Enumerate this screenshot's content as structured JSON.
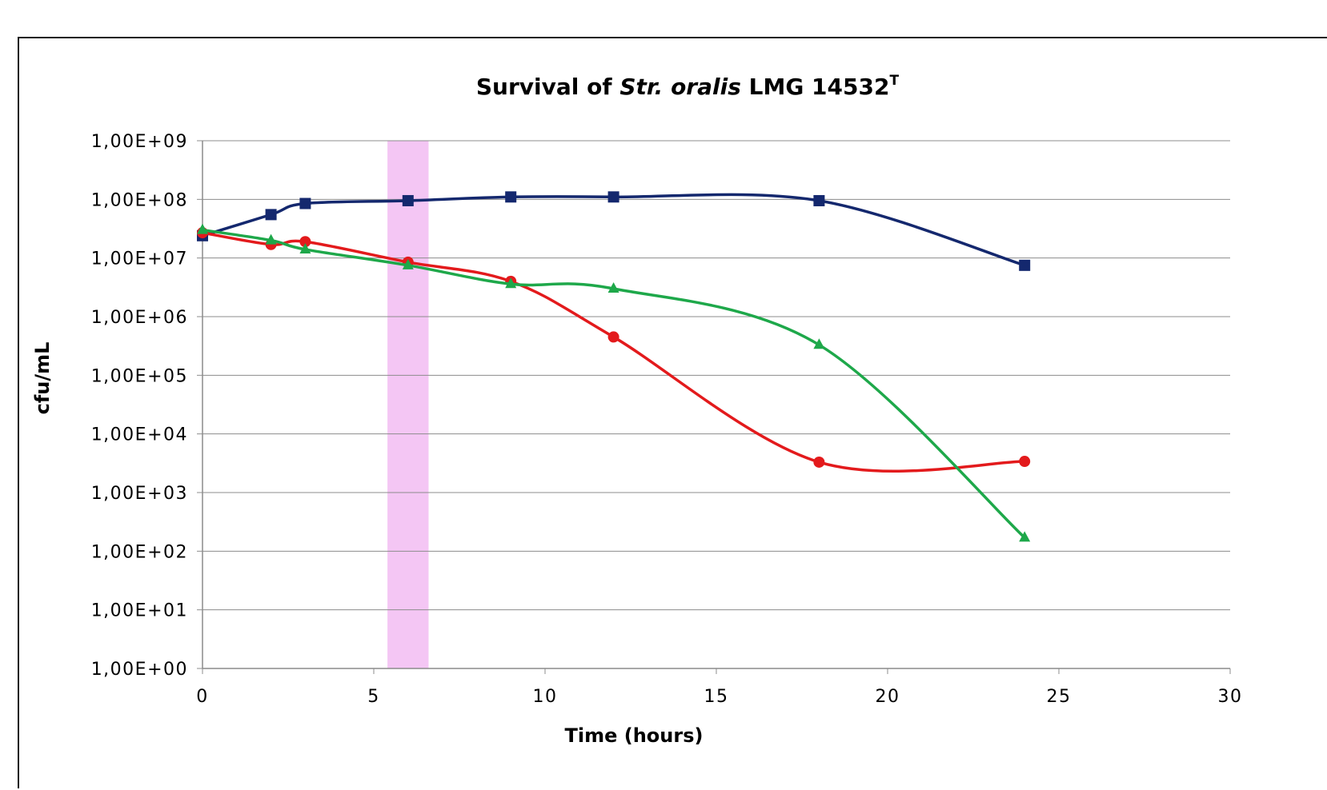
{
  "chart_data": {
    "type": "line",
    "title": {
      "prefix": "Survival of ",
      "italic": "Str. oralis",
      "suffix": " LMG 14532",
      "superscript": "T"
    },
    "xlabel": "Time (hours)",
    "ylabel": "cfu/mL",
    "xlim": [
      0,
      30
    ],
    "x_ticks": [
      0,
      5,
      10,
      15,
      20,
      25,
      30
    ],
    "x_tick_labels": [
      "0",
      "5",
      "10",
      "15",
      "20",
      "25",
      "30"
    ],
    "y_scale": "log",
    "ylim": [
      1,
      1000000000
    ],
    "y_tick_labels": [
      "1,00E+00",
      "1,00E+01",
      "1,00E+02",
      "1,00E+03",
      "1,00E+04",
      "1,00E+05",
      "1,00E+06",
      "1,00E+07",
      "1,00E+08",
      "1,00E+09"
    ],
    "grid": true,
    "legend": "none",
    "highlight_band": {
      "x_range": [
        5.4,
        6.6
      ],
      "color": "#f4c6f4"
    },
    "series": [
      {
        "marker": "square",
        "color": "#14286e",
        "x": [
          0,
          2,
          3,
          6,
          9,
          12,
          18,
          24
        ],
        "y": [
          24000000,
          55000000,
          85000000,
          95000000,
          110000000,
          110000000,
          95000000,
          7500000
        ]
      },
      {
        "marker": "circle",
        "color": "#e31a1c",
        "x": [
          0,
          2,
          3,
          6,
          9,
          12,
          18,
          24
        ],
        "y": [
          27000000,
          17000000,
          19000000,
          8500000,
          4000000,
          450000,
          3300,
          3400
        ]
      },
      {
        "marker": "triangle",
        "color": "#1ea84a",
        "x": [
          0,
          2,
          3,
          6,
          9,
          12,
          18,
          24
        ],
        "y": [
          30000000,
          20000000,
          14000000,
          7500000,
          3600000,
          3000000,
          330000,
          170
        ]
      }
    ]
  }
}
